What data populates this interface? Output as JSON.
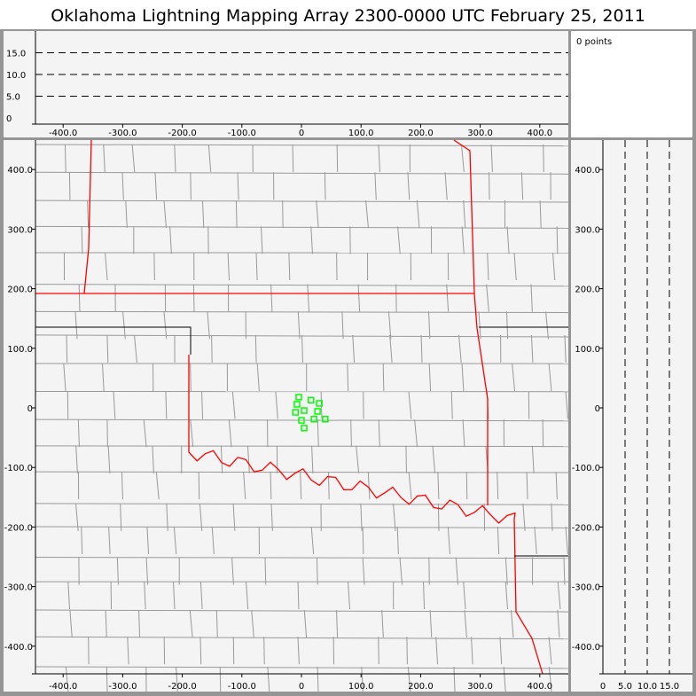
{
  "title": "Oklahoma Lightning Mapping Array   2300-0000 UTC  February 25, 2011",
  "points_label": "0 points",
  "colors": {
    "panel_bg": "#f4f4f4",
    "frame": "#959595",
    "state_border": "#ff0000",
    "county": "#999999",
    "source": "#00ff00"
  },
  "chart_data": [
    {
      "type": "scatter",
      "panel": "altitude-vs-east-west",
      "xlim": [
        -450,
        450
      ],
      "ylim": [
        0,
        19
      ],
      "x_ticks": [
        "-400.0",
        "-300.0",
        "-200.0",
        "-100.0",
        "0",
        "100.0",
        "200.0",
        "300.0",
        "400.0"
      ],
      "y_ticks": [
        "0",
        "5.0",
        "10.0",
        "15.0"
      ],
      "grid": "dashed horizontal at 5, 10, 15"
    },
    {
      "type": "scatter",
      "panel": "plan-view-map",
      "xlim": [
        -450,
        450
      ],
      "ylim": [
        -450,
        450
      ],
      "x_ticks": [
        "-400.0",
        "-300.0",
        "-200.0",
        "-100.0",
        "0",
        "100.0",
        "200.0",
        "300.0",
        "400.0"
      ],
      "y_ticks": [
        "400.0",
        "300.0",
        "200.0",
        "100.0",
        "0",
        "-100.0",
        "-200.0",
        "-300.0",
        "-400.0"
      ],
      "series": [
        {
          "marker": "hollow-square",
          "points": [
            [
              -4.5,
              18
            ],
            [
              16,
              13
            ],
            [
              30,
              7.5
            ],
            [
              -7.5,
              6
            ],
            [
              4.5,
              -4.5
            ],
            [
              27,
              -6
            ],
            [
              -10,
              -7.5
            ],
            [
              0,
              -21
            ],
            [
              21,
              -19
            ],
            [
              40,
              -19
            ],
            [
              4.5,
              -34
            ]
          ]
        }
      ]
    },
    {
      "type": "scatter",
      "panel": "north-south-vs-altitude",
      "xlim": [
        0,
        19
      ],
      "ylim": [
        -450,
        450
      ],
      "x_ticks": [
        "0",
        "5.0",
        "10.0",
        "15.0"
      ],
      "y_ticks": [
        "400.0",
        "300.0",
        "200.0",
        "100.0",
        "0",
        "-100.0",
        "-200.0",
        "-300.0",
        "-400.0"
      ],
      "grid": "dashed vertical at 5, 10, 15"
    }
  ]
}
